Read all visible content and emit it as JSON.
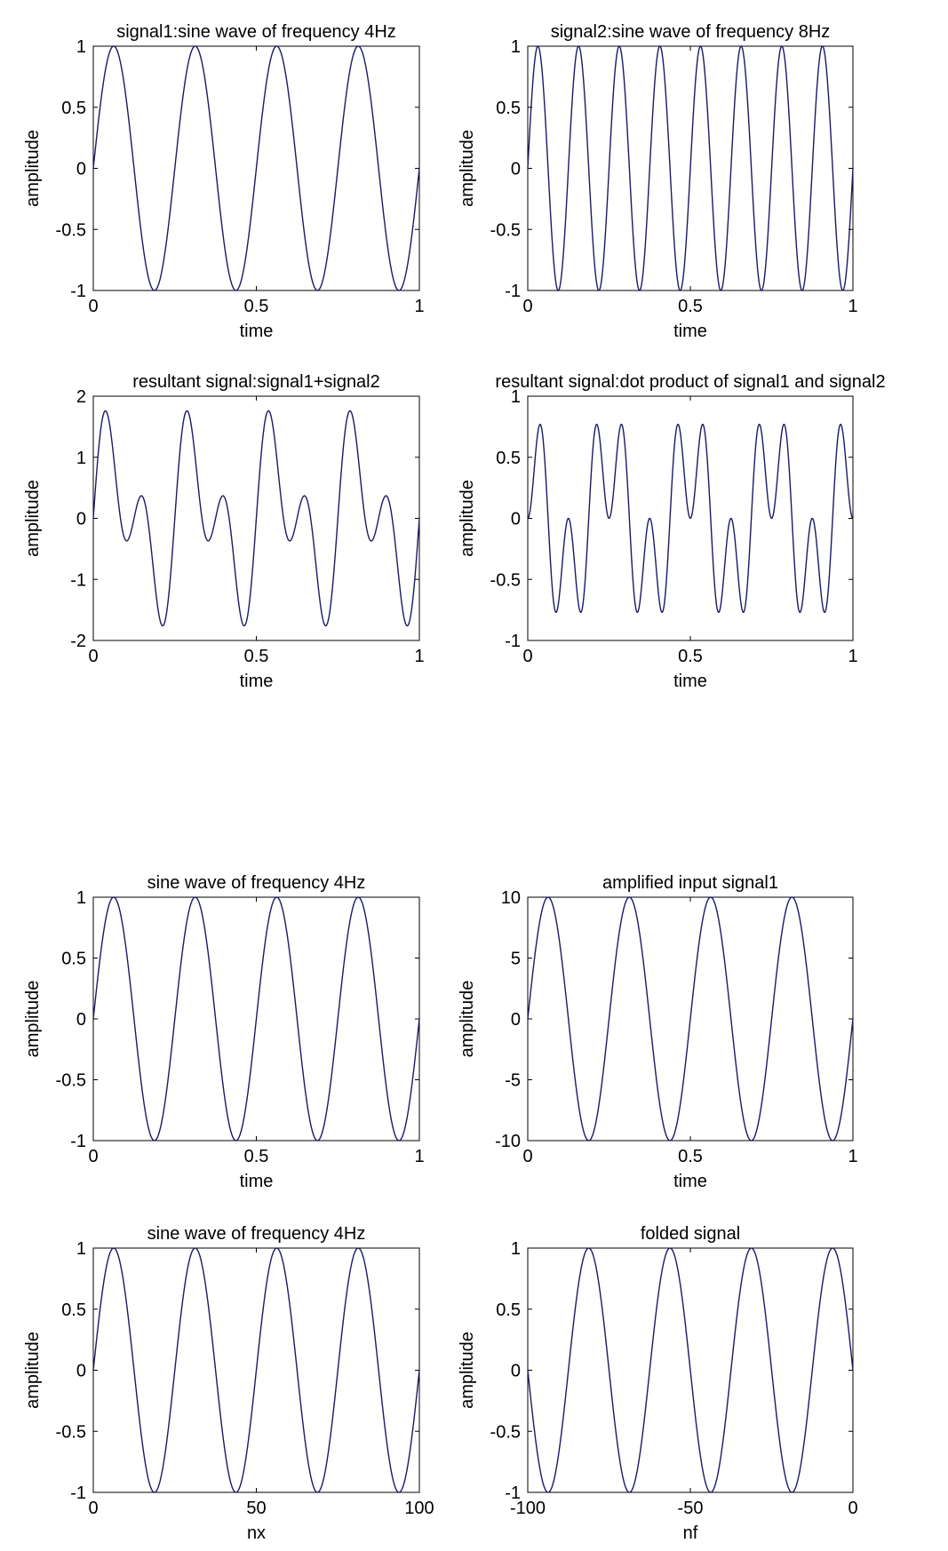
{
  "chart_data": [
    {
      "type": "line",
      "title": "signal1:sine wave of frequency 4Hz",
      "xlabel": "time",
      "ylabel": "amplitude",
      "xlim": [
        0,
        1
      ],
      "ylim": [
        -1,
        1
      ],
      "xticks": [
        0,
        0.5,
        1
      ],
      "yticks": [
        1,
        0.5,
        0,
        -0.5,
        -1
      ],
      "xtick_labels": [
        "0",
        "0.5",
        "1"
      ],
      "ytick_labels": [
        "1",
        "0.5",
        "0",
        "-0.5",
        "-1"
      ],
      "series": [
        {
          "formula": "sin(2*pi*4*t)",
          "x_range": [
            0,
            1
          ],
          "color": "#1a1a66"
        }
      ]
    },
    {
      "type": "line",
      "title": "signal2:sine wave of frequency 8Hz",
      "xlabel": "time",
      "ylabel": "amplitude",
      "xlim": [
        0,
        1
      ],
      "ylim": [
        -1,
        1
      ],
      "xticks": [
        0,
        0.5,
        1
      ],
      "yticks": [
        1,
        0.5,
        0,
        -0.5,
        -1
      ],
      "xtick_labels": [
        "0",
        "0.5",
        "1"
      ],
      "ytick_labels": [
        "1",
        "0.5",
        "0",
        "-0.5",
        "-1"
      ],
      "series": [
        {
          "formula": "sin(2*pi*8*t)",
          "x_range": [
            0,
            1
          ],
          "color": "#1a1a66"
        }
      ]
    },
    {
      "type": "line",
      "title": "resultant signal:signal1+signal2",
      "xlabel": "time",
      "ylabel": "amplitude",
      "xlim": [
        0,
        1
      ],
      "ylim": [
        -2,
        2
      ],
      "xticks": [
        0,
        0.5,
        1
      ],
      "yticks": [
        2,
        1,
        0,
        -1,
        -2
      ],
      "xtick_labels": [
        "0",
        "0.5",
        "1"
      ],
      "ytick_labels": [
        "2",
        "1",
        "0",
        "-1",
        "-2"
      ],
      "series": [
        {
          "formula": "sin(2*pi*4*t)+sin(2*pi*8*t)",
          "x_range": [
            0,
            1
          ],
          "color": "#1a1a66"
        }
      ]
    },
    {
      "type": "line",
      "title": "resultant signal:dot product of signal1 and signal2",
      "xlabel": "time",
      "ylabel": "amplitude",
      "xlim": [
        0,
        1
      ],
      "ylim": [
        -1,
        1
      ],
      "xticks": [
        0,
        0.5,
        1
      ],
      "yticks": [
        1,
        0.5,
        0,
        -0.5,
        -1
      ],
      "xtick_labels": [
        "0",
        "0.5",
        "1"
      ],
      "ytick_labels": [
        "1",
        "0.5",
        "0",
        "-0.5",
        "-1"
      ],
      "series": [
        {
          "formula": "sin(2*pi*4*t)*sin(2*pi*8*t)",
          "x_range": [
            0,
            1
          ],
          "color": "#1a1a66"
        }
      ]
    },
    {
      "type": "line",
      "title": "sine wave of frequency 4Hz",
      "xlabel": "time",
      "ylabel": "amplitude",
      "xlim": [
        0,
        1
      ],
      "ylim": [
        -1,
        1
      ],
      "xticks": [
        0,
        0.5,
        1
      ],
      "yticks": [
        1,
        0.5,
        0,
        -0.5,
        -1
      ],
      "xtick_labels": [
        "0",
        "0.5",
        "1"
      ],
      "ytick_labels": [
        "1",
        "0.5",
        "0",
        "-0.5",
        "-1"
      ],
      "series": [
        {
          "formula": "sin(2*pi*4*t)",
          "x_range": [
            0,
            1
          ],
          "color": "#1a1a66"
        }
      ]
    },
    {
      "type": "line",
      "title": "amplified input signal1",
      "xlabel": "time",
      "ylabel": "amplitude",
      "xlim": [
        0,
        1
      ],
      "ylim": [
        -10,
        10
      ],
      "xticks": [
        0,
        0.5,
        1
      ],
      "yticks": [
        10,
        5,
        0,
        -5,
        -10
      ],
      "xtick_labels": [
        "0",
        "0.5",
        "1"
      ],
      "ytick_labels": [
        "10",
        "5",
        "0",
        "-5",
        "-10"
      ],
      "series": [
        {
          "formula": "10*sin(2*pi*4*t)",
          "x_range": [
            0,
            1
          ],
          "color": "#1a1a66"
        }
      ]
    },
    {
      "type": "line",
      "title": "sine wave of frequency 4Hz",
      "xlabel": "nx",
      "ylabel": "amplitude",
      "xlim": [
        0,
        100
      ],
      "ylim": [
        -1,
        1
      ],
      "xticks": [
        0,
        50,
        100
      ],
      "yticks": [
        1,
        0.5,
        0,
        -0.5,
        -1
      ],
      "xtick_labels": [
        "0",
        "50",
        "100"
      ],
      "ytick_labels": [
        "1",
        "0.5",
        "0",
        "-0.5",
        "-1"
      ],
      "series": [
        {
          "formula": "sin(2*pi*4*n/100)",
          "x_range": [
            0,
            100
          ],
          "color": "#1a1a66"
        }
      ]
    },
    {
      "type": "line",
      "title": "folded signal",
      "xlabel": "nf",
      "ylabel": "amplitude",
      "xlim": [
        -100,
        0
      ],
      "ylim": [
        -1,
        1
      ],
      "xticks": [
        -100,
        -50,
        0
      ],
      "yticks": [
        1,
        0.5,
        0,
        -0.5,
        -1
      ],
      "xtick_labels": [
        "-100",
        "-50",
        "0"
      ],
      "ytick_labels": [
        "1",
        "0.5",
        "0",
        "-0.5",
        "-1"
      ],
      "series": [
        {
          "formula": "sin(-2*pi*4*n/100)",
          "x_range": [
            -100,
            0
          ],
          "color": "#1a1a66"
        }
      ]
    }
  ]
}
